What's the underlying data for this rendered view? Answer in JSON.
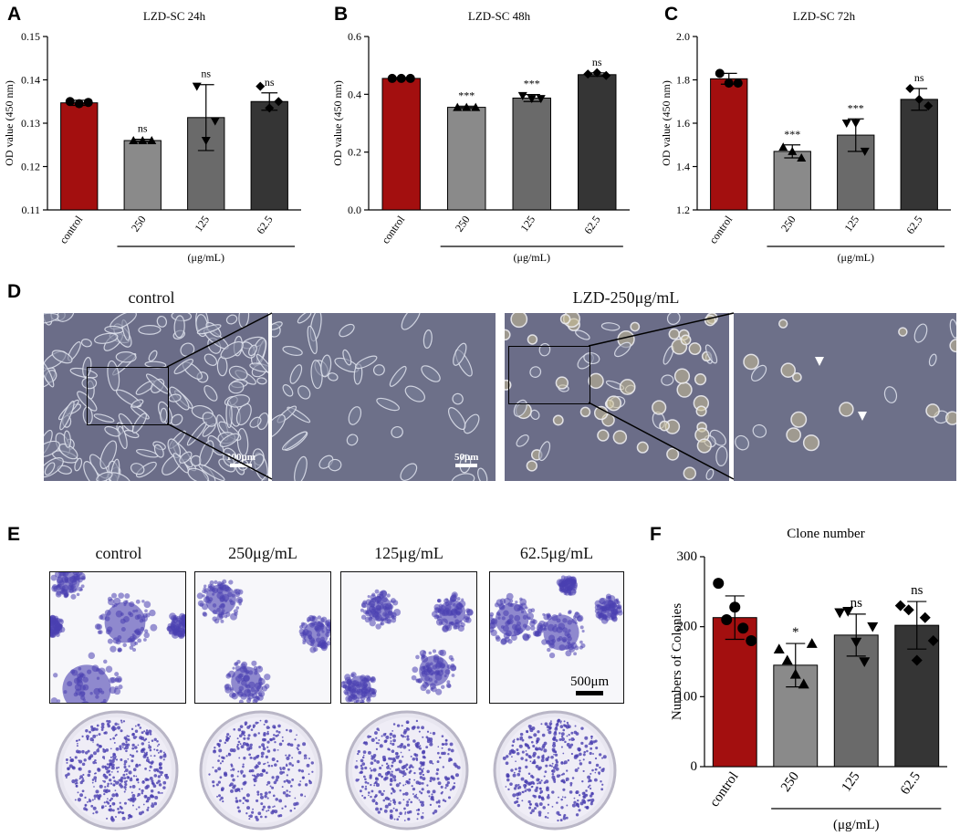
{
  "panel_labels": [
    "A",
    "B",
    "C",
    "D",
    "E",
    "F"
  ],
  "colors": {
    "control": "#a30f0f",
    "c250": "#8a8a8a",
    "c125": "#6a6a6a",
    "c62_5": "#353535",
    "crystal_violet": "#4a3fb0"
  },
  "chart_data": [
    {
      "id": "A",
      "type": "bar",
      "title": "LZD-SC 24h",
      "ylabel": "OD value (450 nm)",
      "xgroup_label": "(μg/mL)",
      "categories": [
        "control",
        "250",
        "125",
        "62.5"
      ],
      "values": [
        0.1347,
        0.126,
        0.1313,
        0.135
      ],
      "errors": [
        0.0006,
        0.0003,
        0.0076,
        0.002
      ],
      "points": [
        [
          0.135,
          0.1345,
          0.1348
        ],
        [
          0.126,
          0.126,
          0.126
        ],
        [
          0.1385,
          0.126,
          0.1305
        ],
        [
          0.1385,
          0.1335,
          0.135
        ]
      ],
      "markers": [
        "circle",
        "triangle-up",
        "triangle-down",
        "diamond"
      ],
      "significance": [
        "",
        "ns",
        "ns",
        "ns"
      ],
      "ylim": [
        0.11,
        0.15
      ],
      "yticks": [
        "0.11",
        "0.12",
        "0.13",
        "0.14",
        "0.15"
      ]
    },
    {
      "id": "B",
      "type": "bar",
      "title": "LZD-SC 48h",
      "ylabel": "OD value (450 nm)",
      "xgroup_label": "(μg/mL)",
      "categories": [
        "control",
        "250",
        "125",
        "62.5"
      ],
      "values": [
        0.455,
        0.355,
        0.387,
        0.468
      ],
      "errors": [
        0.003,
        0.004,
        0.012,
        0.006
      ],
      "points": [
        [
          0.455,
          0.455,
          0.455
        ],
        [
          0.355,
          0.355,
          0.355
        ],
        [
          0.395,
          0.385,
          0.385
        ],
        [
          0.47,
          0.475,
          0.465
        ]
      ],
      "markers": [
        "circle",
        "triangle-up",
        "triangle-down",
        "diamond"
      ],
      "significance": [
        "",
        "***",
        "***",
        "ns"
      ],
      "ylim": [
        0.0,
        0.6
      ],
      "yticks": [
        "0.0",
        "0.2",
        "0.4",
        "0.6"
      ]
    },
    {
      "id": "C",
      "type": "bar",
      "title": "LZD-SC 72h",
      "ylabel": "OD value (450 nm)",
      "xgroup_label": "(μg/mL)",
      "categories": [
        "control",
        "250",
        "125",
        "62.5"
      ],
      "values": [
        1.805,
        1.47,
        1.545,
        1.71
      ],
      "errors": [
        0.025,
        0.03,
        0.075,
        0.05
      ],
      "points": [
        [
          1.83,
          1.785,
          1.785
        ],
        [
          1.49,
          1.47,
          1.44
        ],
        [
          1.6,
          1.6,
          1.47
        ],
        [
          1.76,
          1.71,
          1.68
        ]
      ],
      "markers": [
        "circle",
        "triangle-up",
        "triangle-down",
        "diamond"
      ],
      "significance": [
        "",
        "***",
        "***",
        "ns"
      ],
      "ylim": [
        1.2,
        2.0
      ],
      "yticks": [
        "1.2",
        "1.4",
        "1.6",
        "1.8",
        "2.0"
      ]
    },
    {
      "id": "F",
      "type": "bar",
      "title": "Clone number",
      "ylabel": "Numbers of Colonies",
      "xgroup_label": "(μg/mL)",
      "categories": [
        "control",
        "250",
        "125",
        "62.5"
      ],
      "values": [
        213,
        145,
        188,
        202
      ],
      "errors": [
        31,
        31,
        30,
        34
      ],
      "points": [
        [
          262,
          210,
          228,
          198,
          180
        ],
        [
          168,
          152,
          132,
          118,
          176
        ],
        [
          220,
          222,
          178,
          150,
          200
        ],
        [
          230,
          224,
          152,
          213,
          180
        ]
      ],
      "markers": [
        "circle",
        "triangle-up",
        "triangle-down",
        "diamond"
      ],
      "significance": [
        "",
        "*",
        "ns",
        "ns"
      ],
      "ylim": [
        0,
        300
      ],
      "yticks": [
        "0",
        "100",
        "200",
        "300"
      ]
    }
  ],
  "panel_d": {
    "left_label": "control",
    "right_label": "LZD-250μg/mL",
    "scale_left": "100μm",
    "scale_zoom": "50μm"
  },
  "panel_e": {
    "conditions": [
      "control",
      "250μg/mL",
      "125μg/mL",
      "62.5μg/mL"
    ],
    "scale": "500μm"
  }
}
